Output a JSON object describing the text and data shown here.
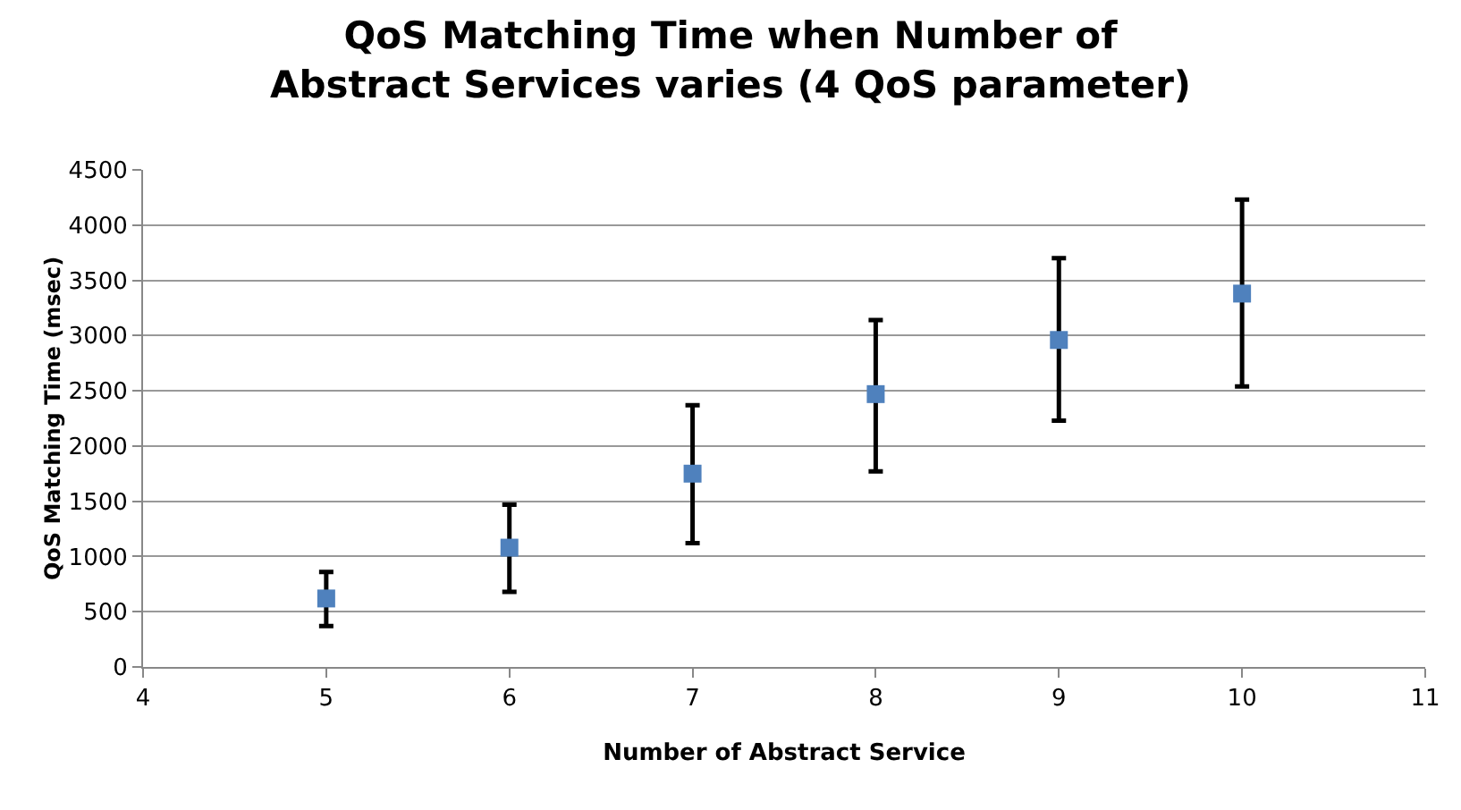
{
  "chart_data": {
    "type": "scatter",
    "title": "QoS Matching Time when Number of Abstract Services varies (4 QoS parameter)",
    "xlabel": "Number of Abstract Service",
    "ylabel": "QoS Matching Time (msec)",
    "x": [
      5,
      6,
      7,
      8,
      9,
      10
    ],
    "series": [
      {
        "color": "#4f81bd",
        "values": [
          620,
          1080,
          1750,
          2470,
          2960,
          3380
        ],
        "errors": [
          [
            370,
            860
          ],
          [
            680,
            1470
          ],
          [
            1120,
            2370
          ],
          [
            1770,
            3140
          ],
          [
            2230,
            3700
          ],
          [
            2540,
            4230
          ]
        ]
      }
    ],
    "xlim": [
      4,
      11
    ],
    "xticks": [
      4,
      5,
      6,
      7,
      8,
      9,
      10,
      11
    ],
    "ylim": [
      0,
      4500
    ],
    "yticks": [
      0,
      500,
      1000,
      1500,
      2000,
      2500,
      3000,
      3500,
      4000,
      4500
    ],
    "grid": "y",
    "marker": "square"
  }
}
